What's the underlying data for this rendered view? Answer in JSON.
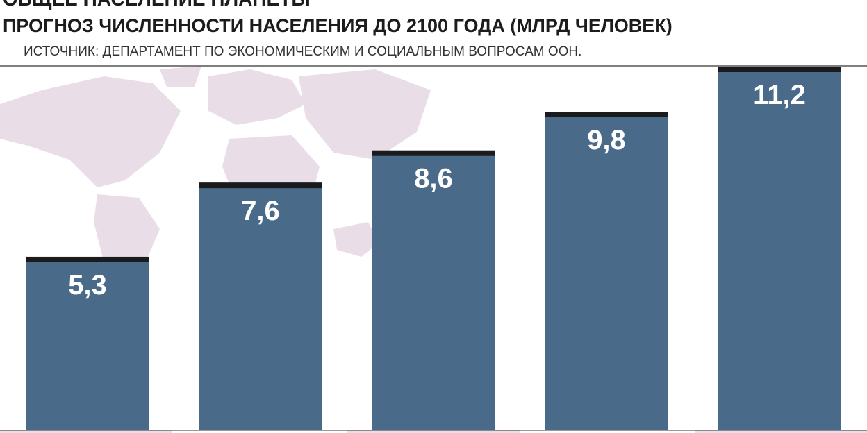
{
  "chart_data": {
    "type": "bar",
    "title": "ОБЩЕЕ НАСЕЛЕНИЕ ПЛАНЕТЫ",
    "subtitle": "ПРОГНОЗ ЧИСЛЕННОСТИ НАСЕЛЕНИЯ ДО 2100 ГОДА (МЛРД ЧЕЛОВЕК)",
    "source": "ИСТОЧНИК: ДЕПАРТАМЕНТ ПО ЭКОНОМИЧЕСКИМ И СОЦИАЛЬНЫМ ВОПРОСАМ ООН.",
    "categories": [
      null,
      null,
      null,
      null,
      null
    ],
    "values": [
      5.3,
      7.6,
      8.6,
      9.8,
      11.2
    ],
    "value_labels": [
      "5,3",
      "7,6",
      "8,6",
      "9,8",
      "11,2"
    ],
    "color": "#496a89"
  }
}
